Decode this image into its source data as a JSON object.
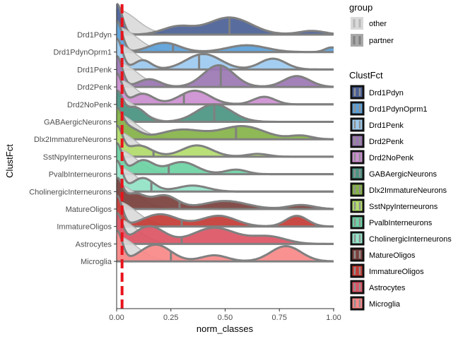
{
  "chart_data": {
    "type": "ridgeline",
    "xlabel": "norm_classes",
    "ylabel": "ClustFct",
    "xlim": [
      0,
      1
    ],
    "x_ticks": [
      {
        "value": 0,
        "label": "0.00"
      },
      {
        "value": 0.25,
        "label": "0.25"
      },
      {
        "value": 0.5,
        "label": "0.50"
      },
      {
        "value": 0.75,
        "label": "0.75"
      },
      {
        "value": 1,
        "label": "1.00"
      }
    ],
    "reference_line": {
      "x": 0.025,
      "color": "#E8141C"
    },
    "legend_group": {
      "title": "group",
      "items": [
        {
          "label": "other",
          "fill": "#D9D9D9",
          "line": "#B8B8B8"
        },
        {
          "label": "partner",
          "fill": "#A8A8A8",
          "line": "#808080"
        }
      ]
    },
    "legend_clust": {
      "title": "ClustFct",
      "items": [
        {
          "label": "Drd1Pdyn",
          "color": "#4A5F96"
        },
        {
          "label": "Drd1PdynOprm1",
          "color": "#5AA0D8"
        },
        {
          "label": "Drd1Penk",
          "color": "#9CCAF0"
        },
        {
          "label": "Drd2Penk",
          "color": "#9B76B3"
        },
        {
          "label": "Drd2NoPenk",
          "color": "#CC8FD0"
        },
        {
          "label": "GABAergicNeurons",
          "color": "#4A9482"
        },
        {
          "label": "Dlx2ImmatureNeurons",
          "color": "#86B248"
        },
        {
          "label": "SstNpyInterneurons",
          "color": "#B2DC6C"
        },
        {
          "label": "PvalbInterneurons",
          "color": "#6CD2A4"
        },
        {
          "label": "CholinergicInterneurons",
          "color": "#94E4C8"
        },
        {
          "label": "MatureOligos",
          "color": "#7A403C"
        },
        {
          "label": "ImmatureOligos",
          "color": "#C43A34"
        },
        {
          "label": "Astrocytes",
          "color": "#DC5464"
        },
        {
          "label": "Microglia",
          "color": "#F88888"
        }
      ]
    },
    "ridges": [
      {
        "cluster": "Drd1Pdyn",
        "median": 0.52,
        "peaks": [
          [
            0,
            1.0,
            0.025
          ],
          [
            0.28,
            0.25,
            0.07
          ],
          [
            0.52,
            0.55,
            0.1
          ],
          [
            0.9,
            0.12,
            0.06
          ]
        ]
      },
      {
        "cluster": "Drd1PdynOprm1",
        "median": 0.26,
        "peaks": [
          [
            0,
            1.0,
            0.025
          ],
          [
            0.22,
            0.3,
            0.07
          ],
          [
            0.6,
            0.22,
            0.09
          ],
          [
            0.99,
            0.15,
            0.03
          ]
        ]
      },
      {
        "cluster": "Drd1Penk",
        "median": 0.38,
        "peaks": [
          [
            0,
            1.0,
            0.025
          ],
          [
            0.12,
            0.3,
            0.04
          ],
          [
            0.4,
            0.5,
            0.08
          ],
          [
            0.72,
            0.35,
            0.06
          ]
        ]
      },
      {
        "cluster": "Drd2Penk",
        "median": 0.48,
        "peaks": [
          [
            0,
            1.0,
            0.025
          ],
          [
            0.15,
            0.25,
            0.05
          ],
          [
            0.47,
            0.7,
            0.07
          ],
          [
            0.83,
            0.35,
            0.06
          ]
        ]
      },
      {
        "cluster": "Drd2NoPenk",
        "median": 0.31,
        "peaks": [
          [
            0,
            1.0,
            0.025
          ],
          [
            0.12,
            0.35,
            0.05
          ],
          [
            0.36,
            0.45,
            0.07
          ],
          [
            0.68,
            0.25,
            0.05
          ]
        ]
      },
      {
        "cluster": "GABAergicNeurons",
        "median": 0.45,
        "peaks": [
          [
            0,
            1.0,
            0.025
          ],
          [
            0.08,
            0.55,
            0.05
          ],
          [
            0.45,
            0.65,
            0.08
          ]
        ]
      },
      {
        "cluster": "Dlx2ImmatureNeurons",
        "median": 0.55,
        "peaks": [
          [
            0,
            1.0,
            0.025
          ],
          [
            0.05,
            0.5,
            0.05
          ],
          [
            0.3,
            0.4,
            0.1
          ],
          [
            0.58,
            0.55,
            0.1
          ],
          [
            0.85,
            0.15,
            0.05
          ]
        ]
      },
      {
        "cluster": "SstNpyInterneurons",
        "median": 0.17,
        "peaks": [
          [
            0,
            1.0,
            0.025
          ],
          [
            0.1,
            0.4,
            0.06
          ],
          [
            0.37,
            0.4,
            0.07
          ],
          [
            0.65,
            0.1,
            0.05
          ]
        ]
      },
      {
        "cluster": "PvalbInterneurons",
        "median": 0.24,
        "peaks": [
          [
            0,
            1.0,
            0.025
          ],
          [
            0.12,
            0.45,
            0.05
          ],
          [
            0.3,
            0.4,
            0.07
          ],
          [
            0.55,
            0.15,
            0.05
          ]
        ]
      },
      {
        "cluster": "CholinergicInterneurons",
        "median": 0.16,
        "peaks": [
          [
            0,
            1.0,
            0.025
          ],
          [
            0.12,
            0.45,
            0.05
          ],
          [
            0.35,
            0.2,
            0.07
          ]
        ]
      },
      {
        "cluster": "MatureOligos",
        "median": 0.29,
        "peaks": [
          [
            0,
            1.0,
            0.025
          ],
          [
            0.08,
            0.55,
            0.05
          ],
          [
            0.22,
            0.5,
            0.06
          ],
          [
            0.5,
            0.3,
            0.1
          ],
          [
            0.85,
            0.15,
            0.06
          ]
        ]
      },
      {
        "cluster": "ImmatureOligos",
        "median": 0.3,
        "peaks": [
          [
            0,
            1.0,
            0.025
          ],
          [
            0.2,
            0.4,
            0.08
          ],
          [
            0.47,
            0.35,
            0.08
          ],
          [
            0.83,
            0.35,
            0.05
          ]
        ]
      },
      {
        "cluster": "Astrocytes",
        "median": 0.3,
        "peaks": [
          [
            0,
            1.0,
            0.025
          ],
          [
            0.15,
            0.6,
            0.07
          ],
          [
            0.45,
            0.55,
            0.1
          ],
          [
            0.7,
            0.25,
            0.08
          ]
        ]
      },
      {
        "cluster": "Microglia",
        "median": 0.25,
        "peaks": [
          [
            0,
            1.0,
            0.025
          ],
          [
            0.18,
            0.55,
            0.07
          ],
          [
            0.45,
            0.2,
            0.06
          ],
          [
            0.78,
            0.5,
            0.07
          ]
        ]
      }
    ]
  }
}
